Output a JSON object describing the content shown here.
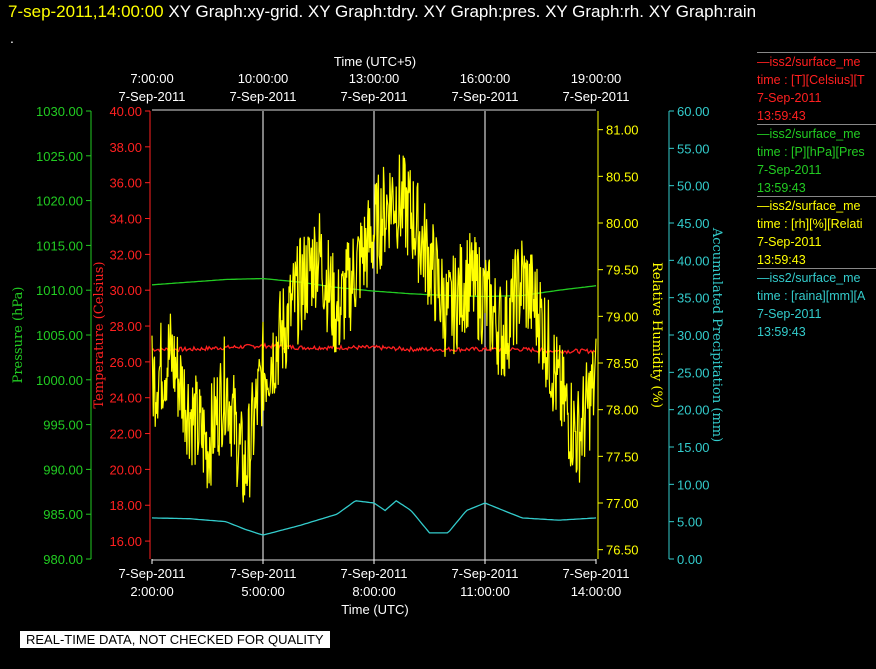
{
  "header": {
    "timestamp": "7-sep-2011,14:00:00",
    "titles": "XY Graph:xy-grid.  XY Graph:tdry.  XY Graph:pres.  XY Graph:rh.  XY Graph:rain",
    "dot": "."
  },
  "disclaimer": "REAL-TIME DATA, NOT CHECKED FOR QUALITY",
  "legend": [
    {
      "line": "—iss2/surface_me",
      "field": "time : [T][Celsius][T",
      "date": "7-Sep-2011",
      "time": "13:59:43",
      "color": "#ff2020"
    },
    {
      "line": "—iss2/surface_me",
      "field": "time : [P][hPa][Pres",
      "date": "7-Sep-2011",
      "time": "13:59:43",
      "color": "#22cc22"
    },
    {
      "line": "—iss2/surface_me",
      "field": "time : [rh][%][Relati",
      "date": "7-Sep-2011",
      "time": "13:59:43",
      "color": "#ffff00"
    },
    {
      "line": "—iss2/surface_me",
      "field": "time : [raina][mm][A",
      "date": "7-Sep-2011",
      "time": "13:59:43",
      "color": "#33cccc"
    }
  ],
  "colors": {
    "temperature": "#ff2020",
    "pressure": "#22cc22",
    "humidity": "#ffff00",
    "precip": "#33cccc",
    "grid": "#ffffff"
  },
  "chart_data": {
    "type": "line",
    "title_top": "Time (UTC+5)",
    "title_bottom": "Time (UTC)",
    "x_range": [
      "7-Sep-2011 2:00:00",
      "7-Sep-2011 14:00:00"
    ],
    "top_ticks": [
      {
        "time": "7:00:00",
        "date": "7-Sep-2011",
        "x": 0
      },
      {
        "time": "10:00:00",
        "date": "7-Sep-2011",
        "x": 3
      },
      {
        "time": "13:00:00",
        "date": "7-Sep-2011",
        "x": 6
      },
      {
        "time": "16:00:00",
        "date": "7-Sep-2011",
        "x": 9
      },
      {
        "time": "19:00:00",
        "date": "7-Sep-2011",
        "x": 12
      }
    ],
    "bottom_ticks": [
      {
        "date": "7-Sep-2011",
        "time": "2:00:00",
        "x": 0
      },
      {
        "date": "7-Sep-2011",
        "time": "5:00:00",
        "x": 3
      },
      {
        "date": "7-Sep-2011",
        "time": "8:00:00",
        "x": 6
      },
      {
        "date": "7-Sep-2011",
        "time": "11:00:00",
        "x": 9
      },
      {
        "date": "7-Sep-2011",
        "time": "14:00:00",
        "x": 12
      }
    ],
    "axes": {
      "pressure": {
        "label": "Pressure (hPa)",
        "min": 980,
        "max": 1030,
        "ticks": [
          "980.00",
          "985.00",
          "990.00",
          "995.00",
          "1000.00",
          "1005.00",
          "1010.00",
          "1015.00",
          "1020.00",
          "1025.00",
          "1030.00"
        ]
      },
      "temperature": {
        "label": "Temperature (Celsius)",
        "min": 15,
        "max": 40,
        "ticks": [
          "16.00",
          "18.00",
          "20.00",
          "22.00",
          "24.00",
          "26.00",
          "28.00",
          "30.00",
          "32.00",
          "34.00",
          "36.00",
          "38.00",
          "40.00"
        ]
      },
      "humidity": {
        "label": "Relative Humidity (%)",
        "min": 76.4,
        "max": 81.2,
        "ticks": [
          "76.50",
          "77.00",
          "77.50",
          "78.00",
          "78.50",
          "79.00",
          "79.50",
          "80.00",
          "80.50",
          "81.00"
        ]
      },
      "precip": {
        "label": "Accumulated Precipitation (mm)",
        "min": 0,
        "max": 60,
        "ticks": [
          "0.00",
          "5.00",
          "10.00",
          "15.00",
          "20.00",
          "25.00",
          "30.00",
          "35.00",
          "40.00",
          "45.00",
          "50.00",
          "55.00",
          "60.00"
        ]
      }
    },
    "series": [
      {
        "name": "Pressure",
        "axis": "pressure",
        "x": [
          0,
          1,
          2,
          3,
          4,
          5,
          6,
          7,
          8,
          9,
          10,
          11,
          12
        ],
        "y": [
          1010.6,
          1010.9,
          1011.2,
          1011.3,
          1010.9,
          1010.3,
          1009.9,
          1009.6,
          1009.4,
          1009.3,
          1009.4,
          1010.0,
          1010.5
        ]
      },
      {
        "name": "Temperature",
        "axis": "temperature",
        "x": [
          0,
          1,
          2,
          3,
          4,
          5,
          6,
          7,
          8,
          9,
          10,
          11,
          12
        ],
        "y": [
          26.7,
          26.7,
          26.8,
          26.9,
          26.8,
          26.8,
          26.8,
          26.7,
          26.7,
          26.7,
          26.7,
          26.6,
          26.6
        ]
      },
      {
        "name": "Relative Humidity",
        "axis": "humidity",
        "x": [
          0,
          0.5,
          1,
          1.5,
          2,
          2.5,
          3,
          3.5,
          4,
          4.5,
          5,
          5.5,
          6,
          6.5,
          7,
          7.5,
          8,
          8.5,
          9,
          9.5,
          10,
          10.5,
          11,
          11.5,
          12
        ],
        "y": [
          78.3,
          78.6,
          78.0,
          77.6,
          78.3,
          77.3,
          78.4,
          78.8,
          79.3,
          79.7,
          79.0,
          79.5,
          79.9,
          80.3,
          80.1,
          79.6,
          79.0,
          79.4,
          79.2,
          78.8,
          79.4,
          79.0,
          78.2,
          77.7,
          78.3
        ]
      },
      {
        "name": "Accumulated Precipitation",
        "axis": "precip",
        "x": [
          0,
          1,
          2,
          2.5,
          3,
          4,
          5,
          5.5,
          6,
          6.3,
          6.6,
          7,
          7.5,
          8,
          8.5,
          9,
          10,
          11,
          12
        ],
        "y": [
          5.5,
          5.4,
          5.0,
          4.0,
          3.2,
          4.5,
          6.0,
          7.8,
          7.5,
          6.5,
          7.8,
          6.5,
          3.5,
          3.5,
          6.5,
          7.5,
          5.5,
          5.2,
          5.5
        ]
      }
    ],
    "grid": true
  }
}
